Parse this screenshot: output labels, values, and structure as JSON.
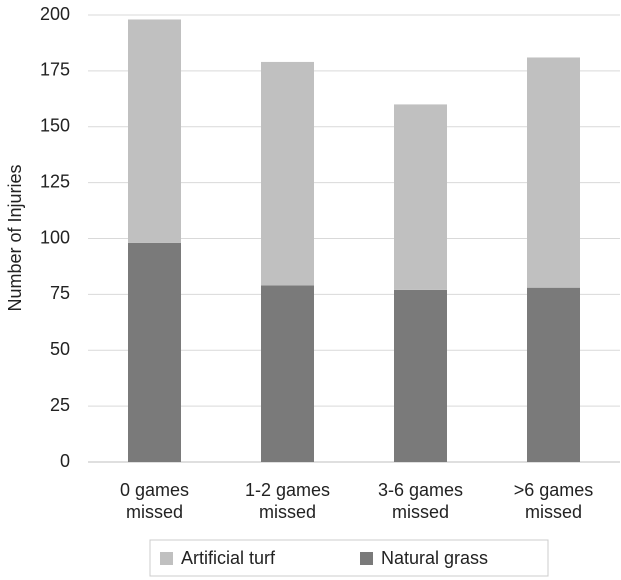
{
  "chart_data": {
    "type": "stacked_bar",
    "y_label": "Number of Injuries",
    "categories": [
      "0 games missed",
      "1-2 games missed",
      "3-6 games missed",
      ">6 games missed"
    ],
    "series": [
      {
        "name": "Natural grass",
        "color": "#7a7a7a",
        "values": [
          98,
          79,
          77,
          78
        ]
      },
      {
        "name": "Artificial turf",
        "color": "#c0c0c0",
        "values": [
          100,
          100,
          83,
          103
        ]
      }
    ],
    "legend_order": [
      1,
      0
    ],
    "ylim": [
      0,
      200
    ],
    "yticks": [
      0,
      25,
      50,
      75,
      100,
      125,
      150,
      175,
      200
    ],
    "grid": true
  }
}
